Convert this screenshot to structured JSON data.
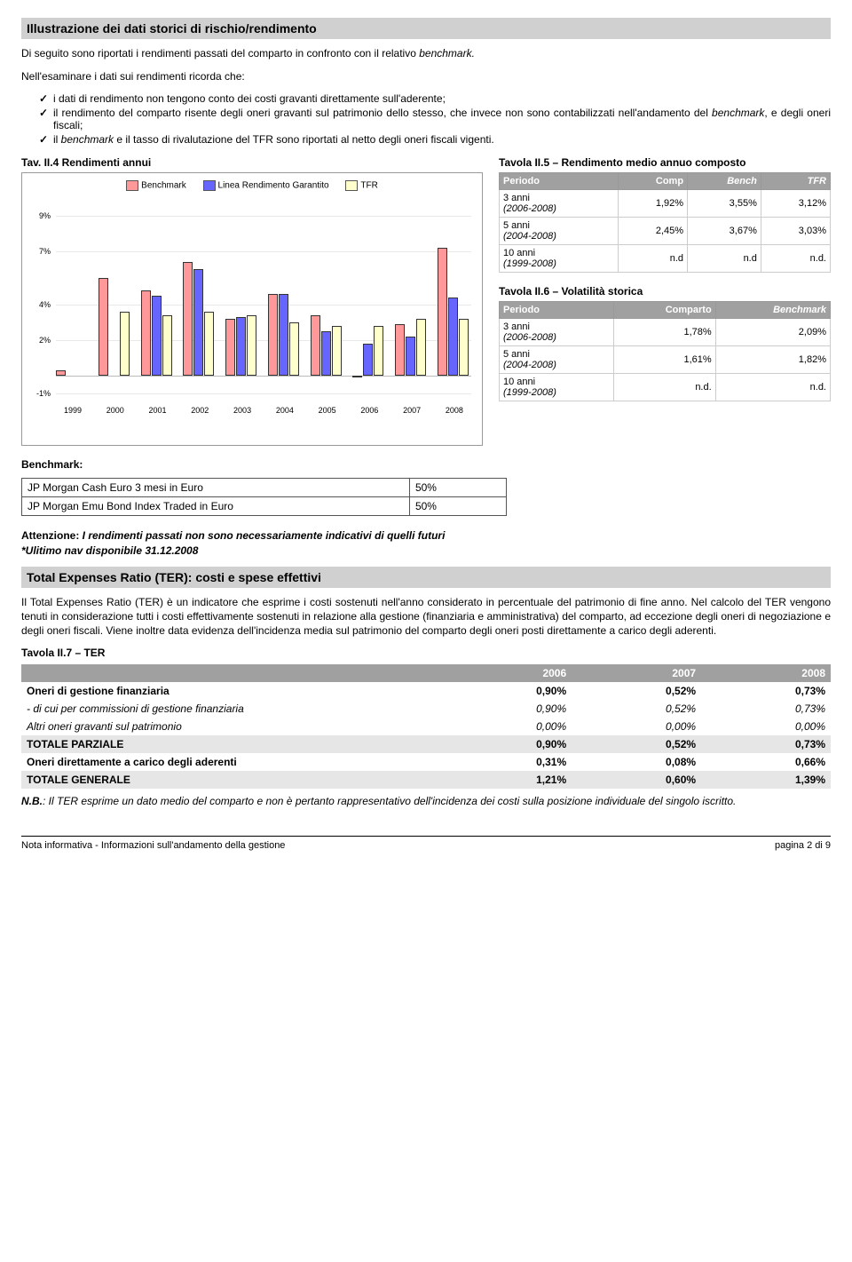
{
  "titles": {
    "section1": "Illustrazione dei dati storici di rischio/rendimento",
    "section2": "Total Expenses Ratio (TER): costi e spese effettivi",
    "chart": "Tav. II.4 Rendimenti annui",
    "table5": "Tavola II.5 – Rendimento medio annuo composto",
    "table6": "Tavola II.6 – Volatilità storica",
    "table7": "Tavola II.7 – TER"
  },
  "paras": {
    "intro1": "Di seguito sono riportati i rendimenti passati del comparto in confronto con il relativo ",
    "intro1_em": "benchmark.",
    "intro2": "Nell'esaminare i dati sui rendimenti ricorda che:",
    "li1a": "i dati di rendimento non tengono conto dei costi gravanti direttamente sull'aderente;",
    "li2a": "il rendimento del comparto risente degli oneri gravanti sul patrimonio dello stesso, che invece non sono contabilizzati nell'andamento del ",
    "li2b": "benchmark",
    "li2c": ", e degli oneri fiscali;",
    "li3a": "il ",
    "li3b": "benchmark",
    "li3c": " e il tasso di rivalutazione del TFR sono riportati al netto degli oneri fiscali vigenti.",
    "att1": "Attenzione: ",
    "att2": "I rendimenti passati non sono necessariamente indicativi di quelli futuri",
    "att3": "*Ulitimo nav disponibile 31.12.2008",
    "ter_intro": "Il Total Expenses Ratio (TER) è un indicatore che esprime i costi sostenuti nell'anno considerato in percentuale del patrimonio di fine anno. Nel calcolo del TER vengono tenuti in considerazione tutti i costi effettivamente sostenuti in relazione alla gestione (finanziaria e amministrativa) del comparto, ad eccezione degli oneri di negoziazione e degli oneri fiscali. Viene inoltre data evidenza dell'incidenza media sul patrimonio del comparto degli oneri posti direttamente a carico degli aderenti.",
    "nb1": "N.B.",
    "nb2": ": Il TER esprime un dato medio del comparto e non è pertanto rappresentativo dell'incidenza dei costi sulla posizione individuale del singolo iscritto."
  },
  "chart": {
    "legend": [
      "Benchmark",
      "Linea Rendimento Garantito",
      "TFR"
    ],
    "colors": {
      "benchmark": "#ff9999",
      "linea": "#6666ff",
      "tfr": "#ffffcc",
      "border": "#333333"
    },
    "ylabels": [
      "-1%",
      "2%",
      "4%",
      "7%",
      "9%"
    ],
    "yvalues": [
      -1,
      2,
      4,
      7,
      9
    ],
    "ymin": -1.5,
    "ymax": 10,
    "years": [
      "1999",
      "2000",
      "2001",
      "2002",
      "2003",
      "2004",
      "2005",
      "2006",
      "2007",
      "2008"
    ],
    "series": {
      "benchmark": [
        0.3,
        5.5,
        4.8,
        6.4,
        3.2,
        4.6,
        3.4,
        0.0,
        2.9,
        7.2
      ],
      "linea": [
        null,
        null,
        4.5,
        6.0,
        3.3,
        4.6,
        2.5,
        1.8,
        2.2,
        4.4
      ],
      "tfr": [
        null,
        3.6,
        3.4,
        3.6,
        3.4,
        3.0,
        2.8,
        2.8,
        3.2,
        3.2
      ]
    }
  },
  "table5": {
    "headers": [
      "Periodo",
      "Comp",
      "Bench",
      "TFR"
    ],
    "rows": [
      {
        "period": "3 anni",
        "sub": "(2006-2008)",
        "c": "1,92%",
        "b": "3,55%",
        "t": "3,12%"
      },
      {
        "period": "5 anni",
        "sub": "(2004-2008)",
        "c": "2,45%",
        "b": "3,67%",
        "t": "3,03%"
      },
      {
        "period": "10 anni",
        "sub": "(1999-2008)",
        "c": "n.d",
        "b": "n.d",
        "t": "n.d."
      }
    ]
  },
  "table6": {
    "headers": [
      "Periodo",
      "Comparto",
      "Benchmark"
    ],
    "rows": [
      {
        "period": "3 anni",
        "sub": "(2006-2008)",
        "c": "1,78%",
        "b": "2,09%"
      },
      {
        "period": "5 anni",
        "sub": "(2004-2008)",
        "c": "1,61%",
        "b": "1,82%"
      },
      {
        "period": "10 anni",
        "sub": "(1999-2008)",
        "c": "n.d.",
        "b": "n.d."
      }
    ]
  },
  "benchmark": {
    "label": "Benchmark:",
    "rows": [
      [
        "JP Morgan Cash Euro 3 mesi in Euro",
        "50%"
      ],
      [
        "JP Morgan Emu Bond Index Traded in Euro",
        "50%"
      ]
    ]
  },
  "ter": {
    "headers": [
      "",
      "2006",
      "2007",
      "2008"
    ],
    "rows": [
      {
        "label": "Oneri di gestione finanziaria",
        "v": [
          "0,90%",
          "0,52%",
          "0,73%"
        ],
        "bold": true
      },
      {
        "label": "- di cui per commissioni di gestione finanziaria",
        "v": [
          "0,90%",
          "0,52%",
          "0,73%"
        ],
        "italic": true
      },
      {
        "label": "Altri oneri gravanti sul patrimonio",
        "v": [
          "0,00%",
          "0,00%",
          "0,00%"
        ],
        "italic": true
      },
      {
        "label": "TOTALE PARZIALE",
        "v": [
          "0,90%",
          "0,52%",
          "0,73%"
        ],
        "shade": true
      },
      {
        "label": "Oneri direttamente a carico degli aderenti",
        "v": [
          "0,31%",
          "0,08%",
          "0,66%"
        ],
        "bold": true
      },
      {
        "label": "TOTALE GENERALE",
        "v": [
          "1,21%",
          "0,60%",
          "1,39%"
        ],
        "shade": true
      }
    ]
  },
  "footer": {
    "left": "Nota informativa - Informazioni sull'andamento della gestione",
    "right": "pagina 2 di 9"
  }
}
